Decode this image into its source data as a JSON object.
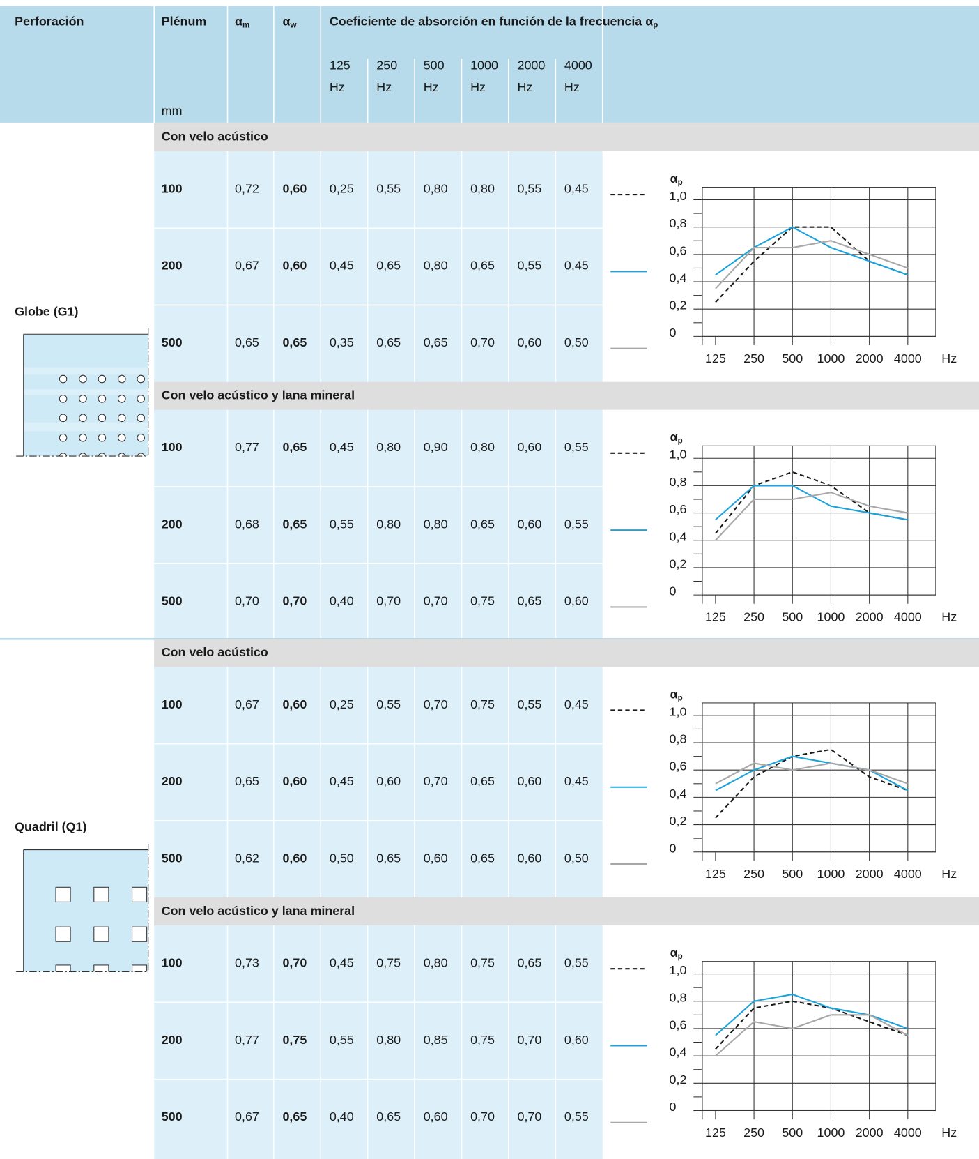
{
  "header": {
    "perforacion": "Perforación",
    "plenum": "Plénum",
    "plenum_unit": "mm",
    "alpha_m": {
      "symbol": "α",
      "sub": "m"
    },
    "alpha_w": {
      "symbol": "α",
      "sub": "w"
    },
    "coef": {
      "text": "Coeficiente de absorción en función de la frecuencia α",
      "sub": "p"
    },
    "frequencies": [
      {
        "value": "125",
        "unit": "Hz"
      },
      {
        "value": "250",
        "unit": "Hz"
      },
      {
        "value": "500",
        "unit": "Hz"
      },
      {
        "value": "1000",
        "unit": "Hz"
      },
      {
        "value": "2000",
        "unit": "Hz"
      },
      {
        "value": "4000",
        "unit": "Hz"
      }
    ]
  },
  "chart": {
    "type": "line",
    "y_label": {
      "symbol": "α",
      "sub": "p"
    },
    "ylim": [
      0,
      1
    ],
    "yticks": [
      0,
      {
        "value": 0.2,
        "label": "0,2"
      },
      {
        "value": 0.4,
        "label": "0,4"
      },
      {
        "value": 0.6,
        "label": "0,6"
      },
      {
        "value": 0.8,
        "label": "0,8"
      },
      {
        "value": 1,
        "label": "1,0"
      }
    ],
    "categories": [
      "125",
      "250",
      "500",
      "1000",
      "2000",
      "4000"
    ],
    "x_unit": "Hz",
    "grid": true,
    "series_styles": [
      {
        "color": "#1a1a1a",
        "dash": true
      },
      {
        "color": "#1aa3dc",
        "dash": false
      },
      {
        "color": "#a8a8a8",
        "dash": false
      }
    ]
  },
  "products": [
    {
      "name": "Globe (G1)",
      "groups": [
        {
          "title": "Con velo acústico",
          "rows": [
            {
              "plenum": "100",
              "alpha_m": "0,72",
              "alpha_w": "0,60",
              "values": [
                0.25,
                0.55,
                0.8,
                0.8,
                0.55,
                0.45
              ],
              "value_labels": [
                "0,25",
                "0,55",
                "0,80",
                "0,80",
                "0,55",
                "0,45"
              ]
            },
            {
              "plenum": "200",
              "alpha_m": "0,67",
              "alpha_w": "0,60",
              "values": [
                0.45,
                0.65,
                0.8,
                0.65,
                0.55,
                0.45
              ],
              "value_labels": [
                "0,45",
                "0,65",
                "0,80",
                "0,65",
                "0,55",
                "0,45"
              ]
            },
            {
              "plenum": "500",
              "alpha_m": "0,65",
              "alpha_w": "0,65",
              "values": [
                0.35,
                0.65,
                0.65,
                0.7,
                0.6,
                0.5
              ],
              "value_labels": [
                "0,35",
                "0,65",
                "0,65",
                "0,70",
                "0,60",
                "0,50"
              ]
            }
          ]
        },
        {
          "title": "Con velo acústico y lana mineral",
          "rows": [
            {
              "plenum": "100",
              "alpha_m": "0,77",
              "alpha_w": "0,65",
              "values": [
                0.45,
                0.8,
                0.9,
                0.8,
                0.6,
                0.55
              ],
              "value_labels": [
                "0,45",
                "0,80",
                "0,90",
                "0,80",
                "0,60",
                "0,55"
              ]
            },
            {
              "plenum": "200",
              "alpha_m": "0,68",
              "alpha_w": "0,65",
              "values": [
                0.55,
                0.8,
                0.8,
                0.65,
                0.6,
                0.55
              ],
              "value_labels": [
                "0,55",
                "0,80",
                "0,80",
                "0,65",
                "0,60",
                "0,55"
              ]
            },
            {
              "plenum": "500",
              "alpha_m": "0,70",
              "alpha_w": "0,70",
              "values": [
                0.4,
                0.7,
                0.7,
                0.75,
                0.65,
                0.6
              ],
              "value_labels": [
                "0,40",
                "0,70",
                "0,70",
                "0,75",
                "0,65",
                "0,60"
              ]
            }
          ]
        }
      ]
    },
    {
      "name": "Quadril (Q1)",
      "groups": [
        {
          "title": "Con velo acústico",
          "rows": [
            {
              "plenum": "100",
              "alpha_m": "0,67",
              "alpha_w": "0,60",
              "values": [
                0.25,
                0.55,
                0.7,
                0.75,
                0.55,
                0.45
              ],
              "value_labels": [
                "0,25",
                "0,55",
                "0,70",
                "0,75",
                "0,55",
                "0,45"
              ]
            },
            {
              "plenum": "200",
              "alpha_m": "0,65",
              "alpha_w": "0,60",
              "values": [
                0.45,
                0.6,
                0.7,
                0.65,
                0.6,
                0.45
              ],
              "value_labels": [
                "0,45",
                "0,60",
                "0,70",
                "0,65",
                "0,60",
                "0,45"
              ]
            },
            {
              "plenum": "500",
              "alpha_m": "0,62",
              "alpha_w": "0,60",
              "values": [
                0.5,
                0.65,
                0.6,
                0.65,
                0.6,
                0.5
              ],
              "value_labels": [
                "0,50",
                "0,65",
                "0,60",
                "0,65",
                "0,60",
                "0,50"
              ]
            }
          ]
        },
        {
          "title": "Con velo acústico y lana mineral",
          "rows": [
            {
              "plenum": "100",
              "alpha_m": "0,73",
              "alpha_w": "0,70",
              "values": [
                0.45,
                0.75,
                0.8,
                0.75,
                0.65,
                0.55
              ],
              "value_labels": [
                "0,45",
                "0,75",
                "0,80",
                "0,75",
                "0,65",
                "0,55"
              ]
            },
            {
              "plenum": "200",
              "alpha_m": "0,77",
              "alpha_w": "0,75",
              "values": [
                0.55,
                0.8,
                0.85,
                0.75,
                0.7,
                0.6
              ],
              "value_labels": [
                "0,55",
                "0,80",
                "0,85",
                "0,75",
                "0,70",
                "0,60"
              ]
            },
            {
              "plenum": "500",
              "alpha_m": "0,67",
              "alpha_w": "0,65",
              "values": [
                0.4,
                0.65,
                0.6,
                0.7,
                0.7,
                0.55
              ],
              "value_labels": [
                "0,40",
                "0,65",
                "0,60",
                "0,70",
                "0,70",
                "0,55"
              ]
            }
          ]
        }
      ]
    }
  ]
}
